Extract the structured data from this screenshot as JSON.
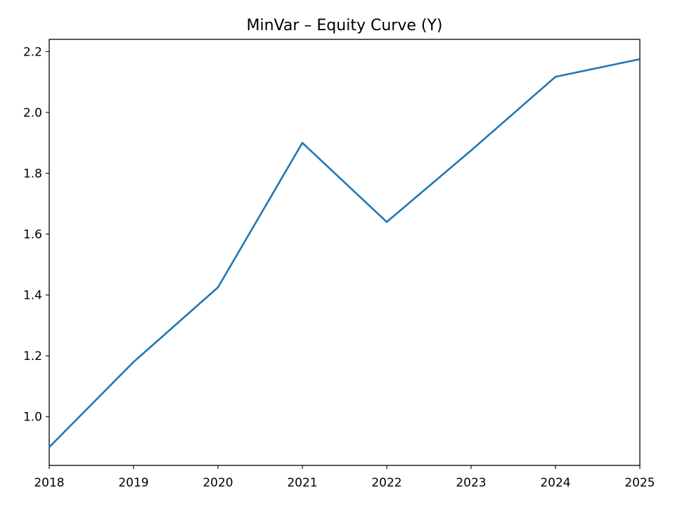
{
  "chart_data": {
    "type": "line",
    "title": "MinVar – Equity Curve (Y)",
    "xlabel": "",
    "ylabel": "",
    "x": [
      2018,
      2019,
      2020,
      2021,
      2022,
      2023,
      2024,
      2025
    ],
    "series": [
      {
        "values": [
          0.9,
          1.18,
          1.425,
          1.9,
          1.64,
          1.875,
          2.117,
          2.175
        ],
        "color": "#1f77b4"
      }
    ],
    "xlim": [
      2018,
      2025
    ],
    "ylim": [
      0.84,
      2.24
    ],
    "xticks": [
      "2018",
      "2019",
      "2020",
      "2021",
      "2022",
      "2023",
      "2024",
      "2025"
    ],
    "yticks": [
      "1.0",
      "1.2",
      "1.4",
      "1.6",
      "1.8",
      "2.0",
      "2.2"
    ],
    "grid": false,
    "legend": "none"
  }
}
